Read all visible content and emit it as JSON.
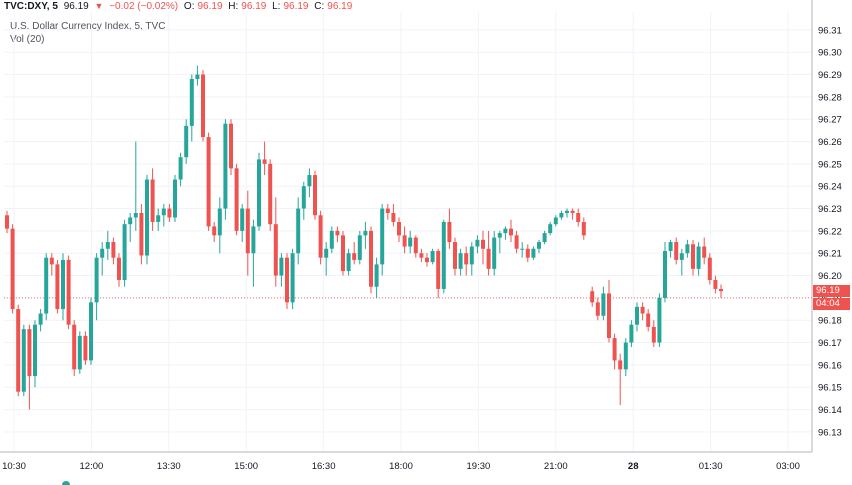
{
  "header": {
    "symbol": "TVC:DXY, 5",
    "last": "96.19",
    "change": "−0.02 (−0.02%)",
    "o_label": "O:",
    "o": "96.19",
    "h_label": "H:",
    "h": "96.19",
    "l_label": "L:",
    "l": "96.19",
    "c_label": "C:",
    "c": "96.19"
  },
  "colors": {
    "up": "#26a69a",
    "down": "#ef5350",
    "grid": "#f0f3fa",
    "axis": "#b2b5be",
    "text": "#131722"
  },
  "chart_data": {
    "type": "candlestick",
    "title": "U.S. Dollar Currency Index, 5, TVC",
    "volume_label": "Vol (20)",
    "last_price": 96.19,
    "last_price_label": "96.19",
    "countdown": "04:04",
    "ylim": [
      96.121,
      96.318
    ],
    "y_ticks": [
      96.31,
      96.3,
      96.29,
      96.28,
      96.27,
      96.26,
      96.25,
      96.24,
      96.23,
      96.22,
      96.21,
      96.2,
      96.19,
      96.18,
      96.17,
      96.16,
      96.15,
      96.14,
      96.13
    ],
    "y_tick_labels": [
      "96.31",
      "96.30",
      "96.29",
      "96.28",
      "96.27",
      "96.26",
      "96.25",
      "96.24",
      "96.23",
      "96.22",
      "96.21",
      "96.20",
      "96.19",
      "96.18",
      "96.17",
      "96.16",
      "96.15",
      "96.14",
      "96.13"
    ],
    "x_tick_labels": [
      "10:30",
      "12:00",
      "13:30",
      "15:00",
      "16:30",
      "18:00",
      "19:30",
      "21:00",
      "28",
      "01:30",
      "03:00"
    ],
    "x_tick_bold": [
      false,
      false,
      false,
      false,
      false,
      false,
      false,
      false,
      true,
      false,
      false
    ],
    "candles": [
      [
        96.227,
        96.229,
        96.219,
        96.221
      ],
      [
        96.221,
        96.223,
        96.183,
        96.185
      ],
      [
        96.185,
        96.187,
        96.146,
        96.148
      ],
      [
        96.148,
        96.178,
        96.146,
        96.176
      ],
      [
        96.176,
        96.178,
        96.14,
        96.155
      ],
      [
        96.155,
        96.18,
        96.15,
        96.178
      ],
      [
        96.178,
        96.185,
        96.175,
        96.183
      ],
      [
        96.183,
        96.21,
        96.18,
        96.208
      ],
      [
        96.208,
        96.21,
        96.2,
        96.205
      ],
      [
        96.205,
        96.207,
        96.183,
        96.185
      ],
      [
        96.185,
        96.21,
        96.18,
        96.207
      ],
      [
        96.207,
        96.209,
        96.176,
        96.178
      ],
      [
        96.178,
        96.18,
        96.155,
        96.158
      ],
      [
        96.158,
        96.175,
        96.156,
        96.173
      ],
      [
        96.173,
        96.175,
        96.16,
        96.162
      ],
      [
        96.162,
        96.19,
        96.16,
        96.188
      ],
      [
        96.188,
        96.21,
        96.18,
        96.208
      ],
      [
        96.208,
        96.215,
        96.2,
        96.212
      ],
      [
        96.212,
        96.22,
        96.207,
        96.215
      ],
      [
        96.215,
        96.217,
        96.205,
        96.208
      ],
      [
        96.208,
        96.21,
        96.195,
        96.198
      ],
      [
        96.198,
        96.225,
        96.195,
        96.223
      ],
      [
        96.223,
        96.228,
        96.215,
        96.226
      ],
      [
        96.226,
        96.26,
        96.22,
        96.228
      ],
      [
        96.228,
        96.232,
        96.205,
        96.209
      ],
      [
        96.209,
        96.245,
        96.205,
        96.243
      ],
      [
        96.243,
        96.248,
        96.22,
        96.224
      ],
      [
        96.224,
        96.23,
        96.22,
        96.227
      ],
      [
        96.227,
        96.232,
        96.222,
        96.23
      ],
      [
        96.23,
        96.232,
        96.224,
        96.226
      ],
      [
        96.226,
        96.245,
        96.224,
        96.243
      ],
      [
        96.243,
        96.255,
        96.24,
        96.253
      ],
      [
        96.253,
        96.27,
        96.25,
        96.267
      ],
      [
        96.267,
        96.29,
        96.26,
        96.288
      ],
      [
        96.288,
        96.294,
        96.285,
        96.29
      ],
      [
        96.29,
        96.292,
        96.26,
        96.262
      ],
      [
        96.262,
        96.264,
        96.22,
        96.222
      ],
      [
        96.222,
        96.224,
        96.215,
        96.218
      ],
      [
        96.218,
        96.235,
        96.21,
        96.23
      ],
      [
        96.23,
        96.27,
        96.225,
        96.268
      ],
      [
        96.268,
        96.27,
        96.245,
        96.248
      ],
      [
        96.248,
        96.25,
        96.218,
        96.22
      ],
      [
        96.22,
        96.232,
        96.215,
        96.23
      ],
      [
        96.23,
        96.238,
        96.2,
        96.21
      ],
      [
        96.21,
        96.225,
        96.195,
        96.222
      ],
      [
        96.222,
        96.255,
        96.22,
        96.252
      ],
      [
        96.252,
        96.26,
        96.245,
        96.25
      ],
      [
        96.25,
        96.252,
        96.22,
        96.223
      ],
      [
        96.223,
        96.235,
        96.195,
        96.2
      ],
      [
        96.2,
        96.21,
        96.195,
        96.208
      ],
      [
        96.208,
        96.21,
        96.185,
        96.188
      ],
      [
        96.188,
        96.212,
        96.185,
        96.21
      ],
      [
        96.21,
        96.235,
        96.205,
        96.23
      ],
      [
        96.23,
        96.242,
        96.225,
        96.24
      ],
      [
        96.24,
        96.248,
        96.235,
        96.245
      ],
      [
        96.245,
        96.247,
        96.225,
        96.227
      ],
      [
        96.227,
        96.229,
        96.205,
        96.208
      ],
      [
        96.208,
        96.215,
        96.2,
        96.212
      ],
      [
        96.212,
        96.222,
        96.21,
        96.22
      ],
      [
        96.22,
        96.222,
        96.215,
        96.218
      ],
      [
        96.218,
        96.22,
        96.2,
        96.202
      ],
      [
        96.202,
        96.212,
        96.2,
        96.21
      ],
      [
        96.21,
        96.215,
        96.205,
        96.207
      ],
      [
        96.207,
        96.22,
        96.205,
        96.218
      ],
      [
        96.218,
        96.224,
        96.212,
        96.22
      ],
      [
        96.22,
        96.222,
        96.192,
        96.195
      ],
      [
        96.195,
        96.208,
        96.19,
        96.205
      ],
      [
        96.205,
        96.232,
        96.2,
        96.23
      ],
      [
        96.23,
        96.232,
        96.225,
        96.228
      ],
      [
        96.228,
        96.232,
        96.222,
        96.224
      ],
      [
        96.224,
        96.226,
        96.215,
        96.218
      ],
      [
        96.218,
        96.222,
        96.21,
        96.213
      ],
      [
        96.213,
        96.22,
        96.21,
        96.217
      ],
      [
        96.217,
        96.218,
        96.208,
        96.21
      ],
      [
        96.21,
        96.212,
        96.206,
        96.208
      ],
      [
        96.208,
        96.21,
        96.204,
        96.206
      ],
      [
        96.206,
        96.212,
        96.205,
        96.211
      ],
      [
        96.211,
        96.212,
        96.19,
        96.194
      ],
      [
        96.194,
        96.225,
        96.192,
        96.224
      ],
      [
        96.224,
        96.23,
        96.212,
        96.215
      ],
      [
        96.215,
        96.217,
        96.2,
        96.203
      ],
      [
        96.203,
        96.212,
        96.2,
        96.21
      ],
      [
        96.21,
        96.213,
        96.2,
        96.205
      ],
      [
        96.205,
        96.215,
        96.2,
        96.213
      ],
      [
        96.213,
        96.218,
        96.21,
        96.216
      ],
      [
        96.216,
        96.22,
        96.205,
        96.212
      ],
      [
        96.212,
        96.22,
        96.2,
        96.203
      ],
      [
        96.203,
        96.22,
        96.2,
        96.217
      ],
      [
        96.217,
        96.22,
        96.21,
        96.219
      ],
      [
        96.219,
        96.222,
        96.216,
        96.221
      ],
      [
        96.221,
        96.225,
        96.215,
        96.218
      ],
      [
        96.218,
        96.22,
        96.21,
        96.212
      ],
      [
        96.212,
        96.215,
        96.208,
        96.212
      ],
      [
        96.212,
        96.214,
        96.206,
        96.208
      ],
      [
        96.208,
        96.213,
        96.207,
        96.212
      ],
      [
        96.212,
        96.216,
        96.21,
        96.215
      ],
      [
        96.215,
        96.22,
        96.214,
        96.219
      ],
      [
        96.219,
        96.224,
        96.218,
        96.223
      ],
      [
        96.223,
        96.227,
        96.222,
        96.226
      ],
      [
        96.226,
        96.229,
        96.225,
        96.228
      ],
      [
        96.228,
        96.23,
        96.226,
        96.229
      ],
      [
        96.229,
        96.23,
        96.225,
        96.228
      ],
      [
        96.228,
        96.23,
        96.222,
        96.224
      ],
      [
        96.224,
        96.226,
        96.216,
        96.218
      ],
      [
        96.193,
        96.195,
        96.186,
        96.188
      ],
      [
        96.188,
        96.19,
        96.18,
        96.182
      ],
      [
        96.182,
        96.195,
        96.18,
        96.192
      ],
      [
        96.192,
        96.198,
        96.17,
        96.172
      ],
      [
        96.172,
        96.174,
        96.158,
        96.162
      ],
      [
        96.162,
        96.165,
        96.142,
        96.158
      ],
      [
        96.158,
        96.172,
        96.155,
        96.17
      ],
      [
        96.17,
        96.18,
        96.168,
        96.178
      ],
      [
        96.178,
        96.188,
        96.175,
        96.186
      ],
      [
        96.186,
        96.188,
        96.18,
        96.183
      ],
      [
        96.183,
        96.185,
        96.175,
        96.177
      ],
      [
        96.177,
        96.18,
        96.168,
        96.17
      ],
      [
        96.17,
        96.192,
        96.168,
        96.19
      ],
      [
        96.19,
        96.215,
        96.188,
        96.211
      ],
      [
        96.211,
        96.216,
        96.208,
        96.215
      ],
      [
        96.215,
        96.217,
        96.205,
        96.207
      ],
      [
        96.207,
        96.212,
        96.2,
        96.21
      ],
      [
        96.21,
        96.216,
        96.208,
        96.214
      ],
      [
        96.214,
        96.216,
        96.2,
        96.203
      ],
      [
        96.203,
        96.215,
        96.2,
        96.213
      ],
      [
        96.213,
        96.217,
        96.205,
        96.208
      ],
      [
        96.208,
        96.21,
        96.196,
        96.198
      ],
      [
        96.198,
        96.2,
        96.192,
        96.194
      ],
      [
        96.194,
        96.196,
        96.19,
        96.193
      ]
    ]
  }
}
